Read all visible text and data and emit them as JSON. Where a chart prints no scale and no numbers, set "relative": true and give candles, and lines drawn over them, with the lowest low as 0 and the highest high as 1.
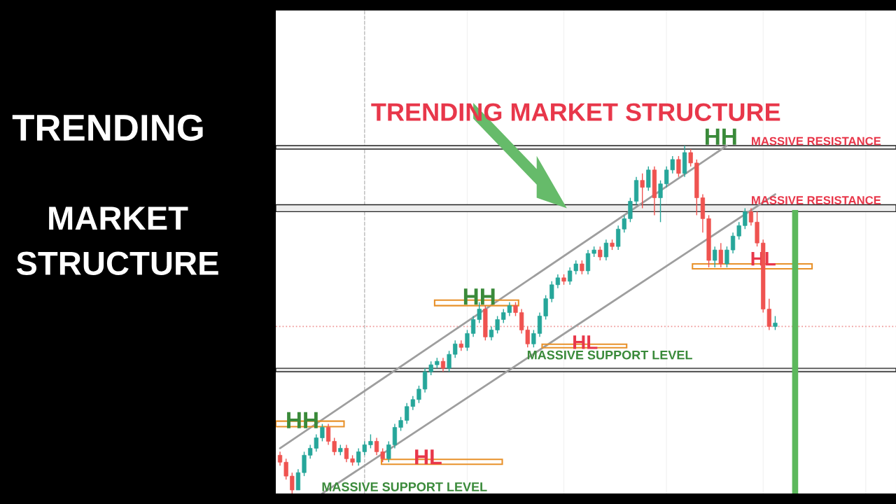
{
  "chart_data": {
    "type": "candlestick",
    "title": "TRENDING",
    "subtitle": "MARKET STRUCTURE",
    "relative": true,
    "categories": [
      null,
      null,
      null,
      null,
      null,
      null,
      null,
      null,
      null,
      null,
      null,
      null,
      null,
      null,
      null,
      null,
      null,
      null,
      null,
      null,
      null,
      null,
      null,
      null,
      null,
      null,
      null,
      null,
      null,
      null,
      null,
      null,
      null,
      null,
      null,
      null,
      null,
      null,
      null,
      null,
      null,
      null,
      null,
      null,
      null,
      null,
      null,
      null,
      null,
      null,
      null,
      null,
      null,
      null,
      null,
      null,
      null,
      null,
      null,
      null,
      null,
      null,
      null,
      null,
      null,
      null,
      null,
      null,
      null,
      null,
      null,
      null,
      null,
      null,
      null,
      null,
      null,
      null,
      null,
      null,
      null,
      null,
      null
    ],
    "ohlc": [
      [
        0.11,
        0.12,
        0.08,
        0.09
      ],
      [
        0.09,
        0.1,
        0.04,
        0.05
      ],
      [
        0.05,
        0.06,
        0.0,
        0.01
      ],
      [
        0.01,
        0.07,
        0.01,
        0.06
      ],
      [
        0.06,
        0.12,
        0.05,
        0.11
      ],
      [
        0.11,
        0.14,
        0.1,
        0.13
      ],
      [
        0.13,
        0.17,
        0.12,
        0.16
      ],
      [
        0.16,
        0.2,
        0.15,
        0.19
      ],
      [
        0.19,
        0.2,
        0.14,
        0.15
      ],
      [
        0.15,
        0.16,
        0.11,
        0.12
      ],
      [
        0.12,
        0.14,
        0.11,
        0.13
      ],
      [
        0.13,
        0.14,
        0.09,
        0.1
      ],
      [
        0.1,
        0.11,
        0.08,
        0.09
      ],
      [
        0.09,
        0.13,
        0.08,
        0.12
      ],
      [
        0.12,
        0.15,
        0.11,
        0.14
      ],
      [
        0.14,
        0.17,
        0.13,
        0.15
      ],
      [
        0.15,
        0.16,
        0.11,
        0.12
      ],
      [
        0.12,
        0.13,
        0.09,
        0.1
      ],
      [
        0.1,
        0.15,
        0.09,
        0.14
      ],
      [
        0.14,
        0.2,
        0.13,
        0.19
      ],
      [
        0.19,
        0.22,
        0.18,
        0.21
      ],
      [
        0.21,
        0.26,
        0.2,
        0.25
      ],
      [
        0.25,
        0.28,
        0.24,
        0.27
      ],
      [
        0.27,
        0.31,
        0.26,
        0.3
      ],
      [
        0.3,
        0.36,
        0.29,
        0.35
      ],
      [
        0.35,
        0.38,
        0.34,
        0.37
      ],
      [
        0.37,
        0.39,
        0.36,
        0.38
      ],
      [
        0.38,
        0.39,
        0.35,
        0.36
      ],
      [
        0.36,
        0.41,
        0.35,
        0.4
      ],
      [
        0.4,
        0.44,
        0.39,
        0.43
      ],
      [
        0.43,
        0.44,
        0.41,
        0.42
      ],
      [
        0.42,
        0.47,
        0.41,
        0.46
      ],
      [
        0.46,
        0.51,
        0.45,
        0.5
      ],
      [
        0.5,
        0.55,
        0.49,
        0.53
      ],
      [
        0.53,
        0.54,
        0.44,
        0.45
      ],
      [
        0.45,
        0.48,
        0.44,
        0.47
      ],
      [
        0.47,
        0.51,
        0.46,
        0.5
      ],
      [
        0.5,
        0.53,
        0.49,
        0.52
      ],
      [
        0.52,
        0.55,
        0.51,
        0.54
      ],
      [
        0.54,
        0.55,
        0.51,
        0.52
      ],
      [
        0.52,
        0.53,
        0.46,
        0.47
      ],
      [
        0.47,
        0.48,
        0.42,
        0.43
      ],
      [
        0.43,
        0.47,
        0.42,
        0.46
      ],
      [
        0.46,
        0.52,
        0.45,
        0.51
      ],
      [
        0.51,
        0.57,
        0.5,
        0.56
      ],
      [
        0.56,
        0.61,
        0.55,
        0.6
      ],
      [
        0.6,
        0.63,
        0.59,
        0.62
      ],
      [
        0.62,
        0.63,
        0.6,
        0.61
      ],
      [
        0.61,
        0.65,
        0.6,
        0.64
      ],
      [
        0.64,
        0.67,
        0.63,
        0.66
      ],
      [
        0.66,
        0.67,
        0.63,
        0.64
      ],
      [
        0.64,
        0.7,
        0.63,
        0.69
      ],
      [
        0.69,
        0.71,
        0.68,
        0.7
      ],
      [
        0.7,
        0.71,
        0.67,
        0.68
      ],
      [
        0.68,
        0.73,
        0.67,
        0.72
      ],
      [
        0.72,
        0.73,
        0.7,
        0.71
      ],
      [
        0.71,
        0.77,
        0.7,
        0.76
      ],
      [
        0.76,
        0.8,
        0.75,
        0.79
      ],
      [
        0.79,
        0.85,
        0.78,
        0.84
      ],
      [
        0.84,
        0.91,
        0.83,
        0.9
      ],
      [
        0.9,
        0.92,
        0.82,
        0.88
      ],
      [
        0.88,
        0.94,
        0.87,
        0.93
      ],
      [
        0.93,
        0.94,
        0.8,
        0.85
      ],
      [
        0.85,
        0.9,
        0.78,
        0.89
      ],
      [
        0.89,
        0.94,
        0.88,
        0.93
      ],
      [
        0.93,
        0.97,
        0.92,
        0.96
      ],
      [
        0.96,
        0.97,
        0.91,
        0.92
      ],
      [
        0.92,
        1.0,
        0.91,
        0.98
      ],
      [
        0.98,
        0.99,
        0.94,
        0.95
      ],
      [
        0.95,
        0.96,
        0.8,
        0.85
      ],
      [
        0.85,
        0.86,
        0.75,
        0.79
      ],
      [
        0.79,
        0.8,
        0.65,
        0.67
      ],
      [
        0.67,
        0.71,
        0.65,
        0.7
      ],
      [
        0.7,
        0.72,
        0.65,
        0.66
      ],
      [
        0.66,
        0.71,
        0.65,
        0.7
      ],
      [
        0.7,
        0.75,
        0.69,
        0.74
      ],
      [
        0.74,
        0.78,
        0.73,
        0.77
      ],
      [
        0.77,
        0.82,
        0.76,
        0.81
      ],
      [
        0.81,
        0.82,
        0.77,
        0.78
      ],
      [
        0.78,
        0.81,
        0.71,
        0.72
      ],
      [
        0.72,
        0.73,
        0.52,
        0.53
      ],
      [
        0.53,
        0.56,
        0.47,
        0.48
      ],
      [
        0.48,
        0.51,
        0.47,
        0.49
      ]
    ],
    "colors": [
      "#ef5350",
      "#ef5350",
      "#ef5350",
      "#26a69a",
      "#26a69a",
      "#26a69a",
      "#26a69a",
      "#26a69a",
      "#ef5350",
      "#ef5350",
      "#26a69a",
      "#ef5350",
      "#ef5350",
      "#26a69a",
      "#26a69a",
      "#26a69a",
      "#ef5350",
      "#ef5350",
      "#26a69a",
      "#26a69a",
      "#26a69a",
      "#26a69a",
      "#26a69a",
      "#26a69a",
      "#26a69a",
      "#26a69a",
      "#26a69a",
      "#ef5350",
      "#26a69a",
      "#26a69a",
      "#ef5350",
      "#26a69a",
      "#26a69a",
      "#26a69a",
      "#ef5350",
      "#26a69a",
      "#26a69a",
      "#26a69a",
      "#26a69a",
      "#ef5350",
      "#ef5350",
      "#ef5350",
      "#26a69a",
      "#26a69a",
      "#26a69a",
      "#26a69a",
      "#26a69a",
      "#ef5350",
      "#26a69a",
      "#26a69a",
      "#ef5350",
      "#26a69a",
      "#26a69a",
      "#ef5350",
      "#26a69a",
      "#ef5350",
      "#26a69a",
      "#26a69a",
      "#26a69a",
      "#26a69a",
      "#ef5350",
      "#26a69a",
      "#ef5350",
      "#26a69a",
      "#26a69a",
      "#26a69a",
      "#ef5350",
      "#26a69a",
      "#ef5350",
      "#ef5350",
      "#ef5350",
      "#ef5350",
      "#26a69a",
      "#ef5350",
      "#26a69a",
      "#26a69a",
      "#26a69a",
      "#26a69a",
      "#ef5350",
      "#ef5350",
      "#ef5350",
      "#ef5350",
      "#26a69a"
    ],
    "series": [
      {
        "type": "line",
        "color": "#9e9e9e",
        "values": [
          0.13,
          null,
          null,
          null,
          null,
          null,
          null,
          null,
          null,
          null,
          null,
          null,
          null,
          null,
          null,
          null,
          null,
          null,
          null,
          null,
          null,
          null,
          null,
          null,
          null,
          null,
          null,
          null,
          null,
          null,
          null,
          null,
          null,
          null,
          null,
          null,
          null,
          null,
          null,
          null,
          null,
          null,
          null,
          null,
          null,
          null,
          null,
          null,
          null,
          null,
          null,
          null,
          null,
          null,
          null,
          null,
          null,
          null,
          null,
          null,
          null,
          null,
          null,
          null,
          null,
          null,
          null,
          null,
          null,
          null,
          null,
          null,
          null,
          null,
          1.0,
          null,
          null,
          null,
          null,
          null,
          null,
          null,
          null
        ]
      },
      {
        "type": "line",
        "color": "#9e9e9e",
        "values": [
          null,
          null,
          null,
          null,
          null,
          null,
          null,
          0.0,
          null,
          null,
          null,
          null,
          null,
          null,
          null,
          null,
          null,
          null,
          null,
          null,
          null,
          null,
          null,
          null,
          null,
          null,
          null,
          null,
          null,
          null,
          null,
          null,
          null,
          null,
          null,
          null,
          null,
          null,
          null,
          null,
          null,
          null,
          null,
          null,
          null,
          null,
          null,
          null,
          null,
          null,
          null,
          null,
          null,
          null,
          null,
          null,
          null,
          null,
          null,
          null,
          null,
          null,
          null,
          null,
          null,
          null,
          null,
          null,
          null,
          null,
          null,
          null,
          null,
          null,
          null,
          null,
          null,
          null,
          null,
          null,
          null,
          null,
          0.86
        ]
      }
    ],
    "bands": [
      {
        "axis": "y",
        "from": 0.99,
        "to": 1.0,
        "label": "MASSIVE RESISTANCE",
        "color": "#eeeeee"
      },
      {
        "axis": "y",
        "from": 0.81,
        "to": 0.83,
        "label": "MASSIVE RESISTANCE",
        "color": "#eeeeee"
      },
      {
        "axis": "y",
        "from": 0.35,
        "to": 0.36,
        "label": "MASSIVE SUPPORT LEVEL",
        "color": "#eeeeee"
      }
    ],
    "ref_lines": [
      {
        "axis": "y",
        "value": 0.48,
        "color": "#ef9a9a",
        "line_style": "dotted"
      }
    ],
    "annotations": [
      "TRENDING MARKET STRUCTURE",
      "HH",
      "HL",
      "HH",
      "HL",
      "HH",
      "HL",
      "MASSIVE SUPPORT LEVEL"
    ],
    "grid": true
  }
}
